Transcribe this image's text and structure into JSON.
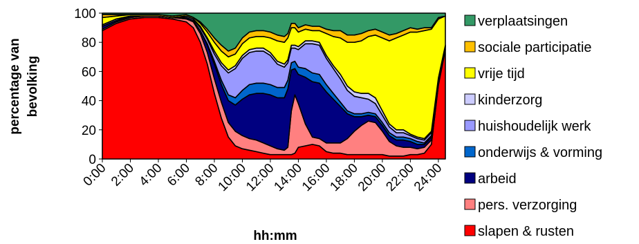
{
  "chart_data": {
    "type": "area",
    "stacked": true,
    "title": "",
    "xlabel": "hh:mm",
    "ylabel_lines": [
      "percentage van",
      "bevolking"
    ],
    "x_ticks": [
      "0:00",
      "2:00",
      "4:00",
      "6:00",
      "8:00",
      "10:00",
      "12:00",
      "14:00",
      "16:00",
      "18:00",
      "20:00",
      "22:00",
      "24:00"
    ],
    "y_ticks": [
      "0",
      "20",
      "40",
      "60",
      "80",
      "100"
    ],
    "ylim": [
      0,
      100
    ],
    "xlim_hours": [
      0,
      24.5
    ],
    "grid": false,
    "legend_position": "right",
    "x_hours": [
      0,
      1,
      2,
      3,
      4,
      5,
      6,
      6.5,
      7,
      7.5,
      8,
      8.5,
      9,
      9.5,
      10,
      10.5,
      11,
      11.5,
      12,
      12.5,
      13,
      13.25,
      13.5,
      13.75,
      14,
      14.5,
      15,
      15.5,
      16,
      16.5,
      17,
      17.5,
      18,
      18.5,
      19,
      19.5,
      20,
      20.5,
      21,
      21.5,
      22,
      22.5,
      23,
      23.5,
      24,
      24.5
    ],
    "series": [
      {
        "name": "slapen & rusten",
        "color": "#ff0000",
        "values": [
          88,
          93,
          96,
          97,
          97,
          96,
          94,
          90,
          80,
          65,
          45,
          28,
          15,
          9,
          7,
          6,
          5,
          4,
          3,
          3,
          3,
          3,
          3,
          4,
          8,
          9,
          10,
          9,
          5,
          4,
          4,
          3,
          3,
          3,
          3,
          3,
          3,
          2,
          2,
          2,
          3,
          3,
          4,
          10,
          50,
          75
        ]
      },
      {
        "name": "pers. verzorging",
        "color": "#ff8080",
        "values": [
          1,
          1,
          1,
          1,
          1,
          1,
          2,
          4,
          6,
          8,
          10,
          11,
          10,
          10,
          9,
          8,
          8,
          7,
          6,
          4,
          3,
          5,
          30,
          40,
          30,
          15,
          5,
          5,
          6,
          7,
          7,
          11,
          16,
          20,
          23,
          22,
          16,
          10,
          7,
          6,
          5,
          4,
          4,
          3,
          2,
          1
        ]
      },
      {
        "name": "arbeid",
        "color": "#000080",
        "values": [
          2,
          1,
          1,
          0,
          0,
          0,
          1,
          1,
          2,
          5,
          10,
          12,
          15,
          18,
          25,
          30,
          32,
          34,
          35,
          35,
          36,
          40,
          28,
          18,
          20,
          32,
          38,
          38,
          35,
          30,
          25,
          17,
          10,
          6,
          4,
          4,
          4,
          4,
          4,
          5,
          4,
          3,
          2,
          2,
          1,
          1
        ]
      },
      {
        "name": "onderwijs & vorming",
        "color": "#0066cc",
        "values": [
          0,
          0,
          0,
          0,
          0,
          0,
          0,
          0,
          0,
          1,
          2,
          3,
          4,
          5,
          6,
          7,
          7,
          7,
          7,
          7,
          7,
          6,
          5,
          5,
          5,
          6,
          6,
          6,
          5,
          4,
          3,
          2,
          2,
          2,
          2,
          2,
          2,
          2,
          2,
          2,
          2,
          2,
          1,
          1,
          0,
          0
        ]
      },
      {
        "name": "huishoudelijk werk",
        "color": "#9999ff",
        "values": [
          1,
          1,
          0,
          0,
          0,
          0,
          1,
          1,
          2,
          3,
          5,
          10,
          15,
          20,
          22,
          22,
          22,
          22,
          20,
          16,
          14,
          12,
          10,
          9,
          12,
          17,
          20,
          20,
          18,
          17,
          16,
          14,
          12,
          11,
          9,
          7,
          5,
          4,
          3,
          3,
          2,
          2,
          2,
          2,
          1,
          1
        ]
      },
      {
        "name": "kinderzorg",
        "color": "#ccccff",
        "values": [
          0,
          0,
          0,
          0,
          0,
          0,
          0,
          0,
          1,
          1,
          2,
          2,
          2,
          2,
          2,
          2,
          2,
          2,
          2,
          2,
          2,
          2,
          2,
          2,
          2,
          2,
          2,
          2,
          2,
          2,
          3,
          3,
          3,
          3,
          4,
          4,
          3,
          2,
          2,
          2,
          1,
          1,
          1,
          1,
          1,
          0
        ]
      },
      {
        "name": "vrije tijd",
        "color": "#ffff00",
        "values": [
          5,
          2,
          1,
          1,
          1,
          1,
          1,
          1,
          2,
          4,
          6,
          8,
          9,
          8,
          8,
          8,
          8,
          8,
          10,
          14,
          15,
          15,
          12,
          12,
          10,
          8,
          7,
          8,
          15,
          20,
          25,
          30,
          34,
          36,
          39,
          43,
          50,
          57,
          63,
          65,
          70,
          72,
          74,
          70,
          40,
          20
        ]
      },
      {
        "name": "sociale participatie",
        "color": "#ffc000",
        "values": [
          2,
          1,
          0,
          0,
          0,
          0,
          0,
          0,
          1,
          2,
          3,
          4,
          4,
          4,
          4,
          4,
          4,
          4,
          4,
          4,
          4,
          3,
          3,
          3,
          3,
          3,
          3,
          3,
          3,
          4,
          5,
          5,
          5,
          5,
          4,
          4,
          4,
          4,
          3,
          3,
          3,
          2,
          2,
          1,
          1,
          0
        ]
      },
      {
        "name": "verplaatsingen",
        "color": "#339966",
        "values": [
          1,
          1,
          1,
          1,
          1,
          2,
          1,
          3,
          6,
          11,
          17,
          22,
          26,
          24,
          17,
          13,
          12,
          12,
          13,
          15,
          16,
          14,
          7,
          7,
          10,
          8,
          9,
          9,
          11,
          12,
          12,
          15,
          15,
          14,
          12,
          11,
          13,
          15,
          14,
          12,
          10,
          11,
          10,
          10,
          3,
          2
        ]
      }
    ]
  }
}
